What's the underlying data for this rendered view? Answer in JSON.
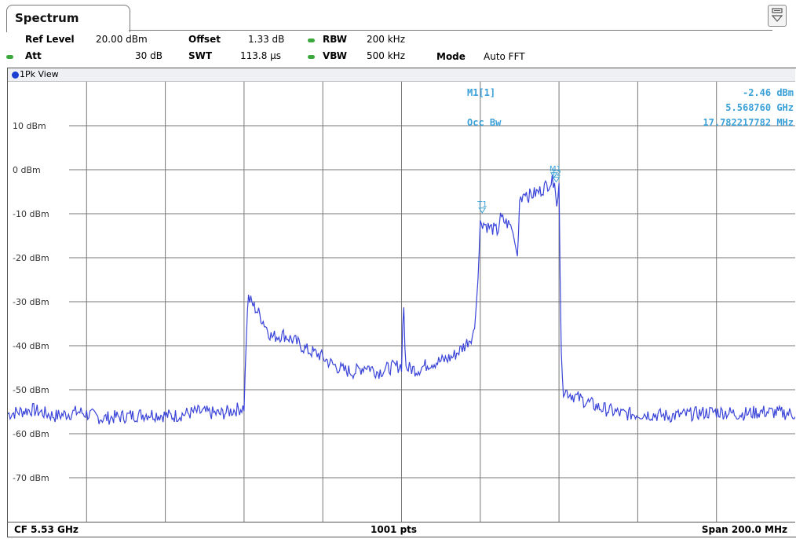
{
  "tab": {
    "title": "Spectrum"
  },
  "settings": {
    "ref_level_label": "Ref Level",
    "ref_level_value": "20.00 dBm",
    "att_label": "Att",
    "att_value": "30 dB",
    "offset_label": "Offset",
    "offset_value": "1.33 dB",
    "swt_label": "SWT",
    "swt_value": "113.8 µs",
    "rbw_label": "RBW",
    "rbw_value": "200 kHz",
    "vbw_label": "VBW",
    "vbw_value": "500 kHz",
    "mode_label": "Mode",
    "mode_value": "Auto FFT"
  },
  "view": {
    "label": "1Pk View"
  },
  "markers": {
    "m1_label": "M1[1]",
    "m1_level": "-2.46 dBm",
    "m1_freq": "5.568760 GHz",
    "occbw_label": "Occ Bw",
    "occbw_value": "17.782217782 MHz"
  },
  "footer": {
    "cf": "CF 5.53 GHz",
    "points": "1001 pts",
    "span": "Span 200.0 MHz"
  },
  "colors": {
    "trace": "#3a44d8",
    "marker": "#3aa0d8",
    "grid": "#777777",
    "indicator": "#3aa83a"
  },
  "chart_data": {
    "type": "line",
    "title": "",
    "xlabel": "",
    "ylabel": "",
    "xlim": [
      5.43,
      5.63
    ],
    "x_unit": "GHz",
    "ylim": [
      -80,
      20
    ],
    "y_ticks": [
      10,
      0,
      -10,
      -20,
      -30,
      -40,
      -50,
      -60,
      -70
    ],
    "y_tick_labels": [
      "10 dBm",
      "0 dBm",
      "-10 dBm",
      "-20 dBm",
      "-30 dBm",
      "-40 dBm",
      "-50 dBm",
      "-60 dBm",
      "-70 dBm"
    ],
    "x_divisions": 10,
    "grid": true,
    "series": [
      {
        "x": [
          5.43,
          5.436,
          5.442,
          5.448,
          5.454,
          5.46,
          5.466,
          5.472,
          5.478,
          5.484,
          5.49,
          5.4905,
          5.491,
          5.494,
          5.497,
          5.5,
          5.503,
          5.506,
          5.509,
          5.512,
          5.515,
          5.518,
          5.521,
          5.524,
          5.527,
          5.53,
          5.5305,
          5.531,
          5.534,
          5.537,
          5.54,
          5.543,
          5.546,
          5.5485,
          5.5495,
          5.55,
          5.552,
          5.5545,
          5.555,
          5.558,
          5.5595,
          5.56,
          5.5615,
          5.562,
          5.565,
          5.5675,
          5.5688,
          5.5695,
          5.57,
          5.5705,
          5.571,
          5.574,
          5.58,
          5.586,
          5.592,
          5.598,
          5.604,
          5.61,
          5.616,
          5.622,
          5.63
        ],
        "y": [
          -55.5,
          -54.5,
          -56,
          -55,
          -56.5,
          -56,
          -55.5,
          -56,
          -55,
          -55.5,
          -54,
          -40,
          -29,
          -33,
          -38,
          -37.5,
          -39,
          -41,
          -42,
          -44,
          -45.5,
          -46,
          -44.5,
          -46,
          -45,
          -44.5,
          -29,
          -45,
          -45.5,
          -44,
          -43.5,
          -42.5,
          -40,
          -37,
          -24,
          -11.5,
          -13,
          -14,
          -11,
          -13,
          -20,
          -7,
          -4.5,
          -6,
          -5,
          -3,
          -2.46,
          -9,
          -3,
          -40,
          -50,
          -51.5,
          -54,
          -55.5,
          -55.5,
          -56,
          -55.5,
          -55,
          -55.5,
          -55,
          -55.5
        ]
      }
    ],
    "markers": [
      {
        "name": "M1",
        "x": 5.56876,
        "y": -2.46
      },
      {
        "name": "T1",
        "x": 5.5505,
        "y": -10.5
      },
      {
        "name": "T2",
        "x": 5.5693,
        "y": -3.5
      }
    ],
    "annotations": [
      "M1[1] -2.46 dBm 5.568760 GHz",
      "Occ Bw 17.782217782 MHz"
    ]
  }
}
